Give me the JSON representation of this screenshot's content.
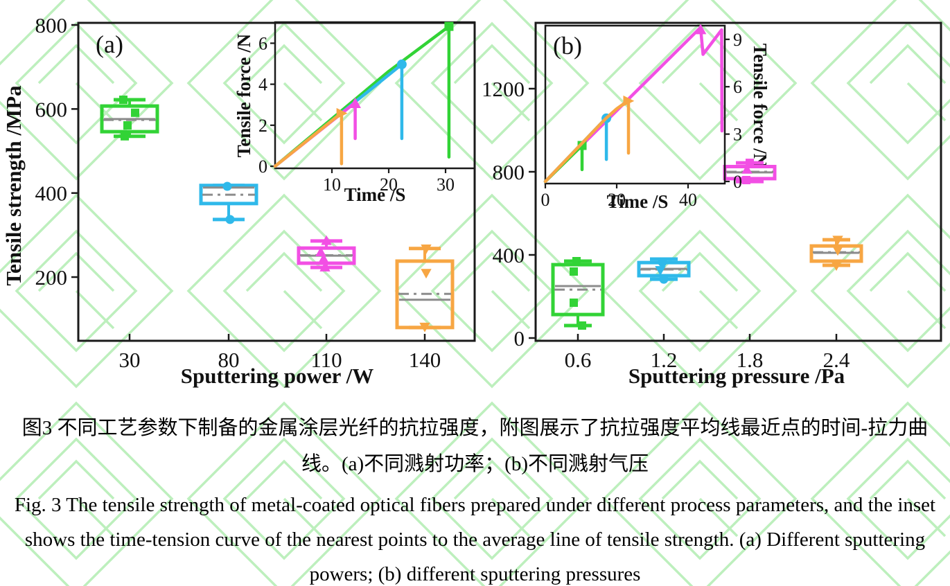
{
  "colors": {
    "green": "#32D336",
    "blue": "#2FB9EA",
    "magenta": "#F24FE4",
    "orange": "#F7A643",
    "stat_gray": "#8C8C8C",
    "axis": "#1A1A1A",
    "watermark": "#BDEFBD"
  },
  "chart_data": [
    {
      "id": "panel_a",
      "type": "box",
      "panel_label": "(a)",
      "xlabel": "Sputtering power /W",
      "ylabel": "Tensile strength /MPa",
      "categories": [
        "30",
        "80",
        "110",
        "140"
      ],
      "y_ticks": [
        200,
        400,
        600,
        800
      ],
      "ylim": [
        50,
        800
      ],
      "boxes": [
        {
          "category": "30",
          "color": "green",
          "q1": 546,
          "q3": 607,
          "median": 576,
          "mean": 574,
          "whisker_low": 535,
          "whisker_high": 622,
          "points": [
            {
              "shape": "square",
              "value": 591,
              "dx": 8
            },
            {
              "shape": "square",
              "value": 561,
              "dx": -3
            },
            {
              "shape": "square",
              "value": 622,
              "dx": -9
            },
            {
              "shape": "square",
              "value": 535,
              "dx": -7
            }
          ]
        },
        {
          "category": "80",
          "color": "blue",
          "q1": 375,
          "q3": 418,
          "median": 413,
          "mean": 396,
          "whisker_low": 337,
          "whisker_high": 418,
          "points": [
            {
              "shape": "circle",
              "value": 416,
              "dx": -2
            },
            {
              "shape": "circle",
              "value": 337,
              "dx": 2
            }
          ]
        },
        {
          "category": "110",
          "color": "magenta",
          "q1": 233,
          "q3": 269,
          "median": 251,
          "mean": 252,
          "whisker_low": 223,
          "whisker_high": 286,
          "points": [
            {
              "shape": "triangle-up",
              "value": 259,
              "dx": -8
            },
            {
              "shape": "triangle-up",
              "value": 243,
              "dx": -4
            },
            {
              "shape": "triangle-up",
              "value": 286,
              "dx": 0
            },
            {
              "shape": "triangle-up",
              "value": 223,
              "dx": -2
            }
          ]
        },
        {
          "category": "140",
          "color": "orange",
          "q1": 80,
          "q3": 238,
          "median": 146,
          "mean": 160,
          "whisker_low": 80,
          "whisker_high": 268,
          "points": [
            {
              "shape": "triangle-down",
              "value": 210,
              "dx": 2
            },
            {
              "shape": "triangle-down",
              "value": 268,
              "dx": 2
            },
            {
              "shape": "triangle-down",
              "value": 82,
              "dx": 0
            }
          ]
        }
      ]
    },
    {
      "id": "panel_b",
      "type": "box",
      "panel_label": "(b)",
      "xlabel": "Sputtering pressure /Pa",
      "ylabel": "",
      "categories": [
        "0.6",
        "1.2",
        "1.8",
        "2.4"
      ],
      "y_ticks": [
        0,
        400,
        800,
        1200
      ],
      "ylim": [
        0,
        1515
      ],
      "boxes": [
        {
          "category": "0.6",
          "color": "green",
          "q1": 113,
          "q3": 353,
          "median": 250,
          "mean": 233,
          "whisker_low": 60,
          "whisker_high": 370,
          "points": [
            {
              "shape": "square",
              "value": 320,
              "dx": -6
            },
            {
              "shape": "square",
              "value": 170,
              "dx": -6
            },
            {
              "shape": "square",
              "value": 370,
              "dx": -2
            },
            {
              "shape": "square",
              "value": 60,
              "dx": 6
            }
          ]
        },
        {
          "category": "1.2",
          "color": "blue",
          "q1": 300,
          "q3": 363,
          "median": 333,
          "mean": 330,
          "whisker_low": 283,
          "whisker_high": 380,
          "points": [
            {
              "shape": "triangle-down",
              "value": 327,
              "dx": -5
            },
            {
              "shape": "circle",
              "value": 365,
              "dx": -2
            },
            {
              "shape": "circle",
              "value": 283,
              "dx": 0
            }
          ]
        },
        {
          "category": "1.8",
          "color": "magenta",
          "q1": 767,
          "q3": 825,
          "median": 797,
          "mean": 800,
          "whisker_low": 753,
          "whisker_high": 843,
          "points": [
            {
              "shape": "triangle-up",
              "value": 810,
              "dx": -4
            },
            {
              "shape": "square",
              "value": 843,
              "dx": 0
            },
            {
              "shape": "square",
              "value": 760,
              "dx": -5
            }
          ]
        },
        {
          "category": "2.4",
          "color": "orange",
          "q1": 370,
          "q3": 443,
          "median": 410,
          "mean": 413,
          "whisker_low": 350,
          "whisker_high": 473,
          "points": [
            {
              "shape": "triangle-down",
              "value": 423,
              "dx": 2
            },
            {
              "shape": "triangle-down",
              "value": 473,
              "dx": 2
            },
            {
              "shape": "triangle-down",
              "value": 350,
              "dx": 0
            }
          ]
        }
      ]
    },
    {
      "id": "inset_a",
      "type": "line",
      "xlabel": "Time /S",
      "ylabel": "Tensile force /N",
      "x_ticks": [
        10,
        20,
        30
      ],
      "y_ticks": [
        0,
        2,
        4,
        6
      ],
      "xlim": [
        0,
        35
      ],
      "ylim": [
        0,
        7
      ],
      "series": [
        {
          "color": "green",
          "marker": "square",
          "marker_at": [
            30.6,
            6.82
          ],
          "points": [
            [
              0,
              0
            ],
            [
              20,
              4.63
            ],
            [
              30.6,
              6.82
            ],
            [
              30.6,
              0.45
            ]
          ]
        },
        {
          "color": "blue",
          "marker": "circle",
          "marker_at": [
            22.3,
            4.97
          ],
          "points": [
            [
              0,
              0
            ],
            [
              22.3,
              4.97
            ],
            [
              22.3,
              1.35
            ]
          ]
        },
        {
          "color": "magenta",
          "marker": "triangle-up",
          "marker_at": [
            14.1,
            3.05
          ],
          "points": [
            [
              0,
              0
            ],
            [
              14.1,
              3.1
            ],
            [
              14.1,
              1.35
            ]
          ]
        },
        {
          "color": "orange",
          "marker": "triangle-right",
          "marker_at": [
            11.6,
            2.58
          ],
          "points": [
            [
              0,
              0
            ],
            [
              11.7,
              2.6
            ],
            [
              11.7,
              0.12
            ]
          ]
        }
      ]
    },
    {
      "id": "inset_b",
      "type": "line",
      "xlabel": "Time /S",
      "ylabel": "Tensile force /N",
      "x_ticks": [
        0,
        20,
        40
      ],
      "y_ticks": [
        0,
        3,
        6,
        9
      ],
      "xlim": [
        0,
        50.3
      ],
      "ylim": [
        0,
        9.85
      ],
      "series": [
        {
          "color": "magenta",
          "marker": "triangle-up",
          "marker_at": [
            43.5,
            9.6
          ],
          "points": [
            [
              0,
              0
            ],
            [
              43.5,
              9.75
            ],
            [
              44.2,
              8.05
            ],
            [
              49.4,
              9.6
            ],
            [
              49.5,
              3.2
            ]
          ]
        },
        {
          "color": "blue",
          "marker": "circle",
          "marker_at": [
            17.1,
            4.0
          ],
          "points": [
            [
              0,
              0
            ],
            [
              17.1,
              4.03
            ],
            [
              17.1,
              1.4
            ]
          ]
        },
        {
          "color": "green",
          "marker": "square",
          "marker_at": [
            10.3,
            2.28
          ],
          "points": [
            [
              0,
              0
            ],
            [
              10.3,
              2.28
            ],
            [
              10.3,
              0.75
            ]
          ]
        },
        {
          "color": "orange",
          "marker": "triangle-right",
          "marker_at": [
            23.1,
            5.1
          ],
          "points": [
            [
              0,
              0
            ],
            [
              17,
              4.0
            ],
            [
              20,
              4.6
            ],
            [
              23.3,
              5.13
            ],
            [
              23.3,
              1.8
            ]
          ]
        }
      ]
    }
  ],
  "caption": {
    "chinese": "图3  不同工艺参数下制备的金属涂层光纤的抗拉强度，附图展示了抗拉强度平均线最近点的时间-拉力曲线。(a)不同溅射功率；(b)不同溅射气压",
    "english": "Fig. 3 The tensile strength of metal-coated optical fibers prepared under different process parameters, and the inset shows the time-tension curve of the nearest points to the average line of tensile strength. (a) Different sputtering powers; (b) different sputtering pressures"
  }
}
